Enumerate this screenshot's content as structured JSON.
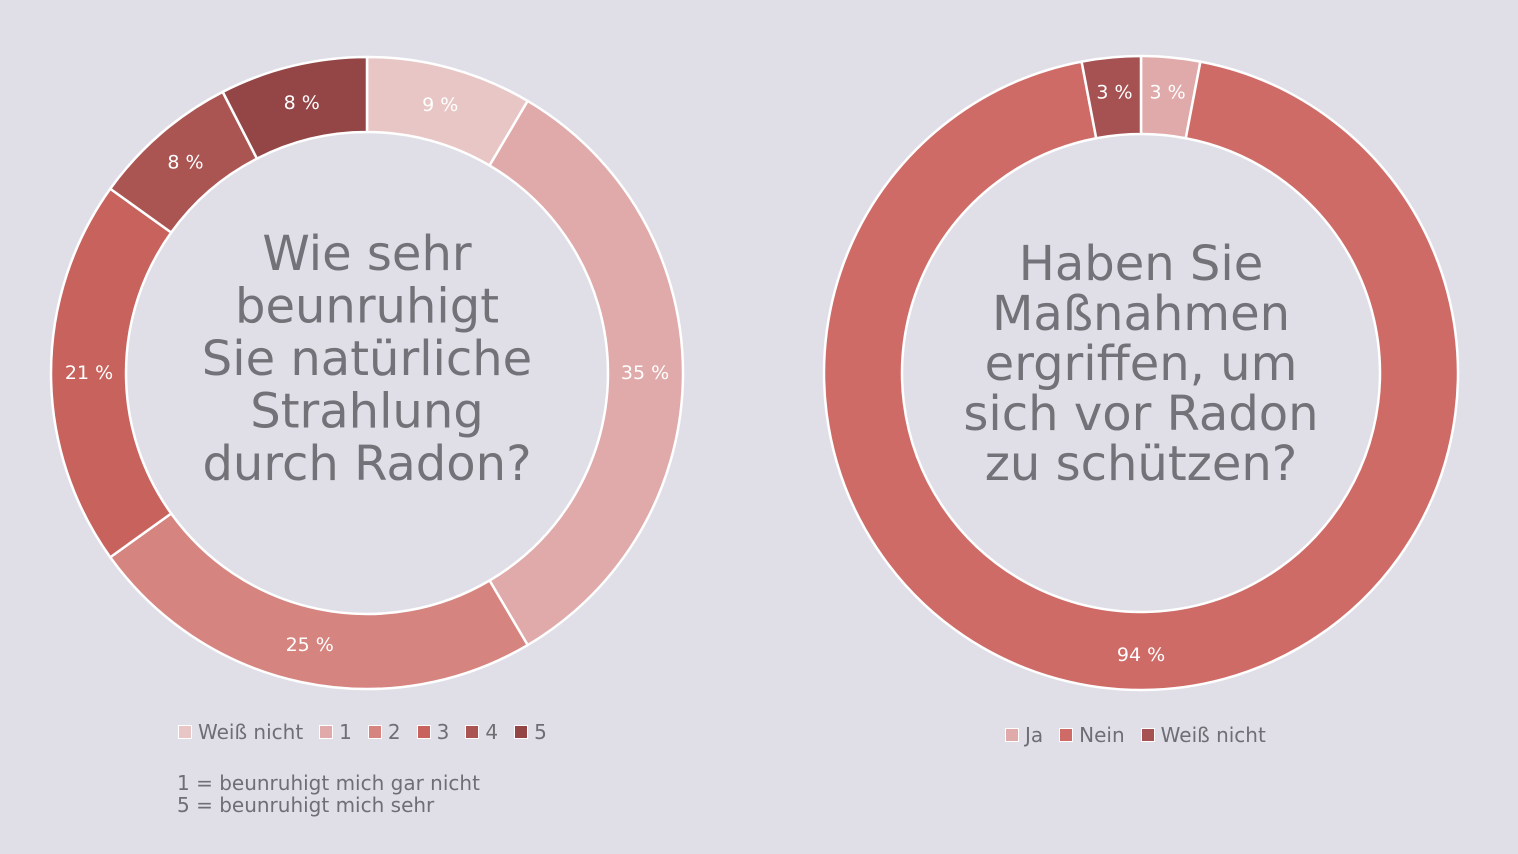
{
  "chart_data": [
    {
      "type": "donut",
      "title_lines": [
        "Wie sehr",
        "beunruhigt",
        "Sie natürliche",
        "Strahlung",
        "durch Radon?"
      ],
      "categories": [
        "Weiß nicht",
        "1",
        "2",
        "3",
        "4",
        "5"
      ],
      "values": [
        9,
        35,
        25,
        21,
        8,
        8
      ],
      "labels": [
        "9 %",
        "35 %",
        "25 %",
        "21 %",
        "8 %",
        "8 %"
      ],
      "colors": [
        "#e8c6c5",
        "#dfaaa9",
        "#d6847f",
        "#c8625d",
        "#aa5552",
        "#944647"
      ],
      "legend_position": "bottom",
      "notes": [
        "1 = beunruhigt mich gar nicht",
        "5 = beunruhigt mich sehr"
      ]
    },
    {
      "type": "donut",
      "title_lines": [
        "Haben Sie",
        "Maßnahmen",
        "ergriffen, um",
        "sich vor Radon",
        "zu schützen?"
      ],
      "categories": [
        "Ja",
        "Nein",
        "Weiß nicht"
      ],
      "values": [
        3,
        94,
        3
      ],
      "labels": [
        "3 %",
        "94 %",
        "3 %"
      ],
      "colors": [
        "#dfaaa9",
        "#cf6b67",
        "#a65252"
      ],
      "legend_position": "bottom"
    }
  ]
}
